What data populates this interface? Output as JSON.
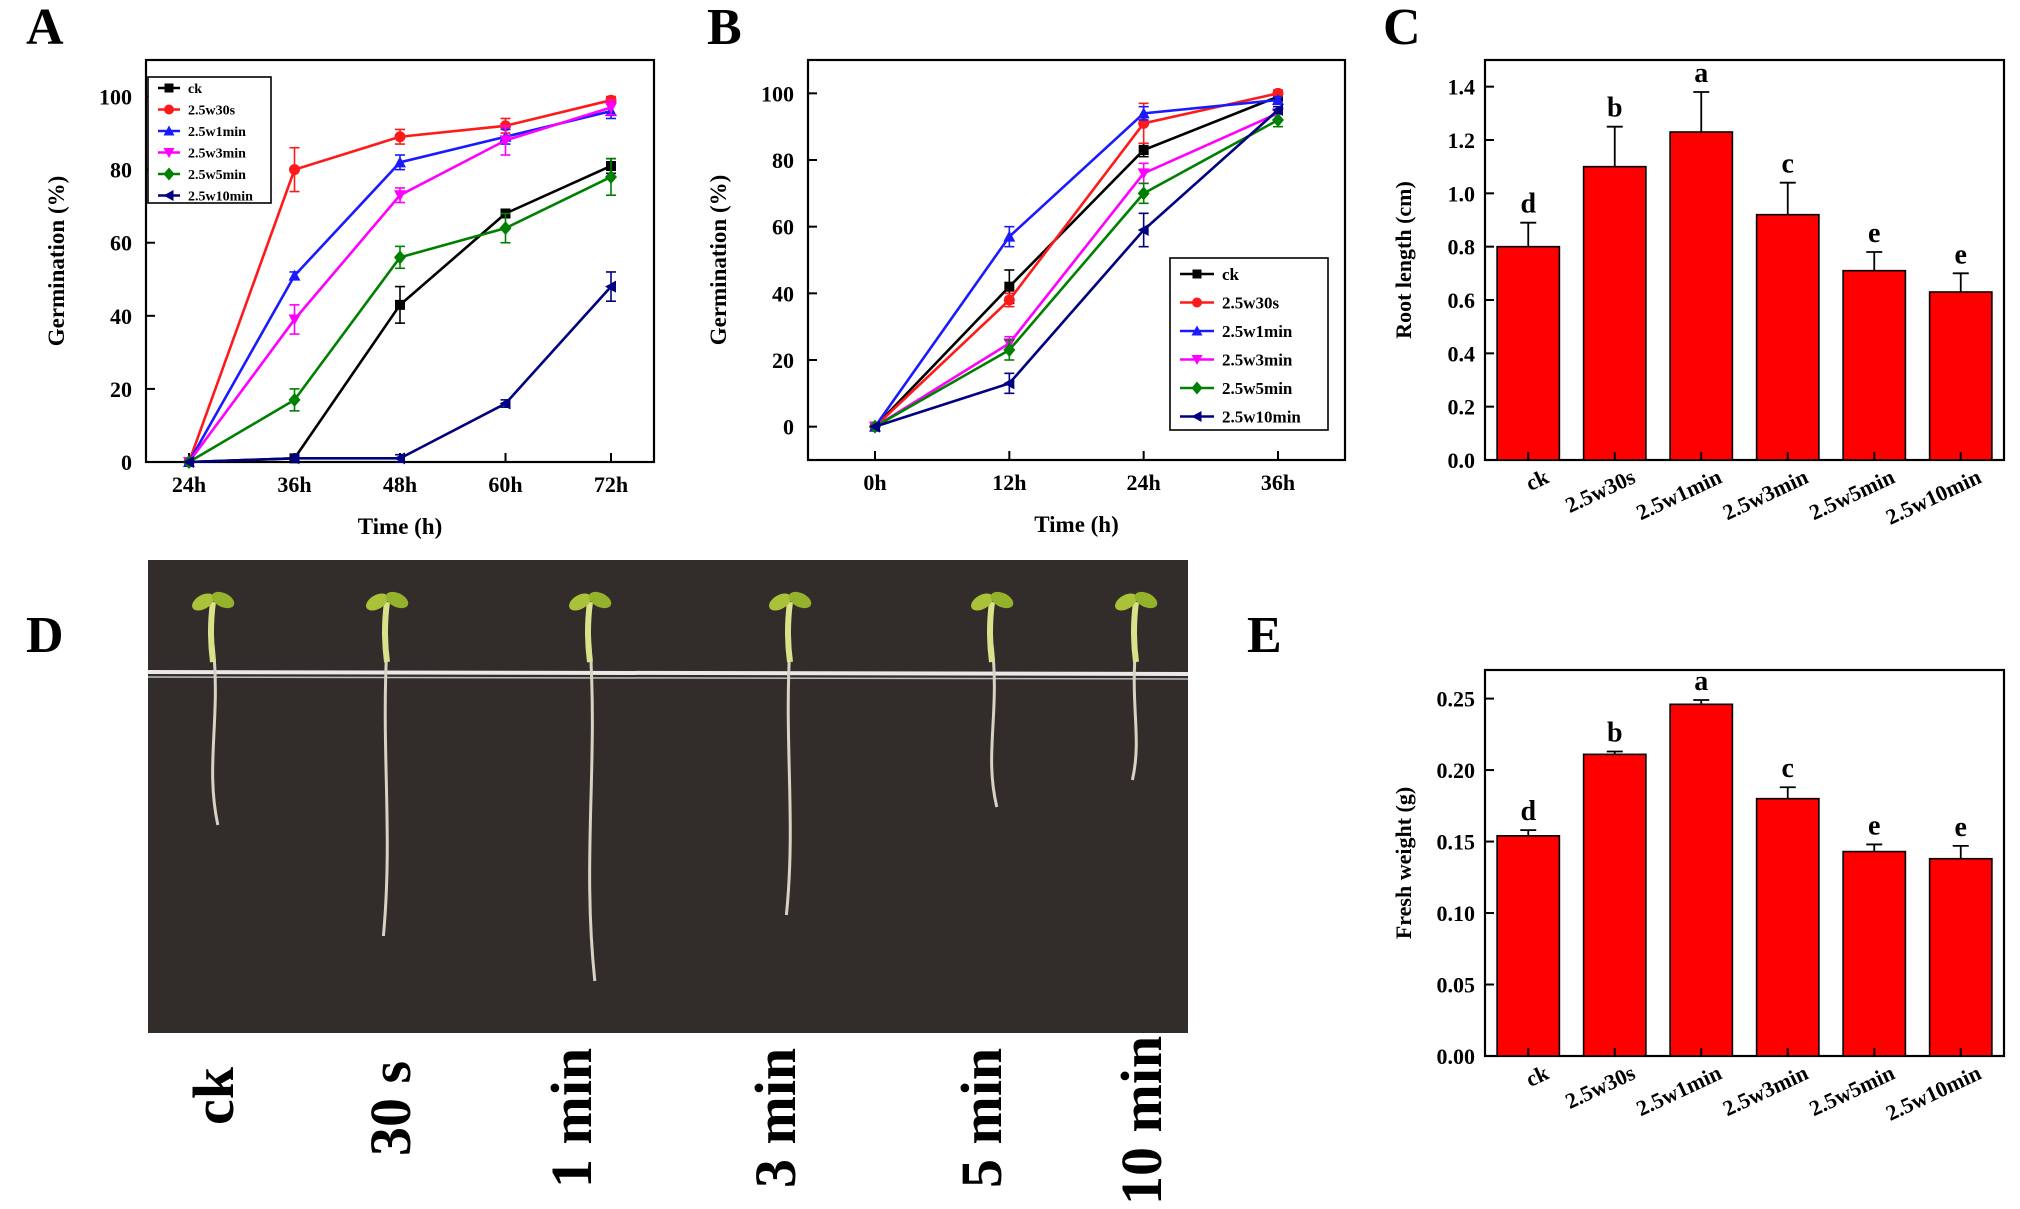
{
  "panel_letters": {
    "a": "A",
    "b": "B",
    "c": "C",
    "d": "D",
    "e": "E"
  },
  "colors": {
    "ck": "#000000",
    "w30s": "#ff1a1a",
    "w1min": "#1a1aff",
    "w3min": "#ff00ff",
    "w5min": "#008000",
    "w10min": "#000080",
    "bar": "#ff0000"
  },
  "chart_data": [
    {
      "panel": "A",
      "type": "line",
      "xlabel": "Time (h)",
      "ylabel": "Germination (%)",
      "categories": [
        "24h",
        "36h",
        "48h",
        "60h",
        "72h"
      ],
      "ylim": [
        0,
        110
      ],
      "yticks": [
        0,
        20,
        40,
        60,
        80,
        100
      ],
      "legend_position": "top-left",
      "series": [
        {
          "name": "ck",
          "marker": "square",
          "color": "#000000",
          "values": [
            0,
            1,
            43,
            68,
            81
          ],
          "err": [
            0,
            1,
            5,
            1,
            2
          ]
        },
        {
          "name": "2.5w30s",
          "marker": "circle",
          "color": "#ff1a1a",
          "values": [
            0,
            80,
            89,
            92,
            99
          ],
          "err": [
            0,
            6,
            2,
            2,
            1
          ]
        },
        {
          "name": "2.5w1min",
          "marker": "triangle-up",
          "color": "#1a1aff",
          "values": [
            0,
            51,
            82,
            89,
            96
          ],
          "err": [
            0,
            1,
            2,
            2,
            2
          ]
        },
        {
          "name": "2.5w3min",
          "marker": "triangle-down",
          "color": "#ff00ff",
          "values": [
            0,
            39,
            73,
            88,
            97
          ],
          "err": [
            0,
            4,
            2,
            4,
            2
          ]
        },
        {
          "name": "2.5w5min",
          "marker": "diamond",
          "color": "#008000",
          "values": [
            0,
            17,
            56,
            64,
            78
          ],
          "err": [
            0,
            3,
            3,
            4,
            5
          ]
        },
        {
          "name": "2.5w10min",
          "marker": "triangle-left",
          "color": "#000080",
          "values": [
            0,
            1,
            1,
            16,
            48
          ],
          "err": [
            0,
            1,
            1,
            1,
            4
          ]
        }
      ]
    },
    {
      "panel": "B",
      "type": "line",
      "xlabel": "Time (h)",
      "ylabel": "Germination (%)",
      "categories": [
        "0h",
        "12h",
        "24h",
        "36h"
      ],
      "ylim": [
        -10,
        110
      ],
      "yticks": [
        0,
        20,
        40,
        60,
        80,
        100
      ],
      "legend_position": "bottom-right",
      "series": [
        {
          "name": "ck",
          "marker": "square",
          "color": "#000000",
          "values": [
            0,
            42,
            83,
            99
          ],
          "err": [
            0,
            5,
            2,
            1
          ]
        },
        {
          "name": "2.5w30s",
          "marker": "circle",
          "color": "#ff1a1a",
          "values": [
            0,
            38,
            91,
            100
          ],
          "err": [
            0,
            2,
            6,
            1
          ]
        },
        {
          "name": "2.5w1min",
          "marker": "triangle-up",
          "color": "#1a1aff",
          "values": [
            0,
            57,
            94,
            98
          ],
          "err": [
            0,
            3,
            2,
            1
          ]
        },
        {
          "name": "2.5w3min",
          "marker": "triangle-down",
          "color": "#ff00ff",
          "values": [
            0,
            25,
            76,
            94
          ],
          "err": [
            0,
            2,
            3,
            2
          ]
        },
        {
          "name": "2.5w5min",
          "marker": "diamond",
          "color": "#008000",
          "values": [
            0,
            23,
            70,
            92
          ],
          "err": [
            0,
            3,
            3,
            2
          ]
        },
        {
          "name": "2.5w10min",
          "marker": "triangle-left",
          "color": "#000080",
          "values": [
            0,
            13,
            59,
            95
          ],
          "err": [
            0,
            3,
            5,
            1
          ]
        }
      ]
    },
    {
      "panel": "C",
      "type": "bar",
      "ylabel": "Root length (cm)",
      "xlabel": "",
      "categories": [
        "ck",
        "2.5w30s",
        "2.5w1min",
        "2.5w3min",
        "2.5w5min",
        "2.5w10min"
      ],
      "values": [
        0.8,
        1.1,
        1.23,
        0.92,
        0.71,
        0.63
      ],
      "err": [
        0.09,
        0.15,
        0.15,
        0.12,
        0.07,
        0.07
      ],
      "sig_letters": [
        "d",
        "b",
        "a",
        "c",
        "e",
        "e"
      ],
      "ylim": [
        0,
        1.5
      ],
      "yticks": [
        "0.0",
        "0.2",
        "0.4",
        "0.6",
        "0.8",
        "1.0",
        "1.2",
        "1.4"
      ]
    },
    {
      "panel": "E",
      "type": "bar",
      "ylabel": "Fresh weight (g)",
      "xlabel": "",
      "categories": [
        "ck",
        "2.5w30s",
        "2.5w1min",
        "2.5w3min",
        "2.5w5min",
        "2.5w10min"
      ],
      "values": [
        0.154,
        0.211,
        0.246,
        0.18,
        0.143,
        0.138
      ],
      "err": [
        0.004,
        0.002,
        0.003,
        0.008,
        0.005,
        0.009
      ],
      "sig_letters": [
        "d",
        "b",
        "a",
        "c",
        "e",
        "e"
      ],
      "ylim": [
        0,
        0.27
      ],
      "yticks": [
        "0.00",
        "0.05",
        "0.10",
        "0.15",
        "0.20",
        "0.25"
      ]
    }
  ],
  "photo": {
    "labels": [
      "ck",
      "30 s",
      "1 min",
      "3 min",
      "5 min",
      "10 min"
    ],
    "root_lengths_relative": [
      0.37,
      0.74,
      0.89,
      0.67,
      0.31,
      0.22
    ]
  }
}
